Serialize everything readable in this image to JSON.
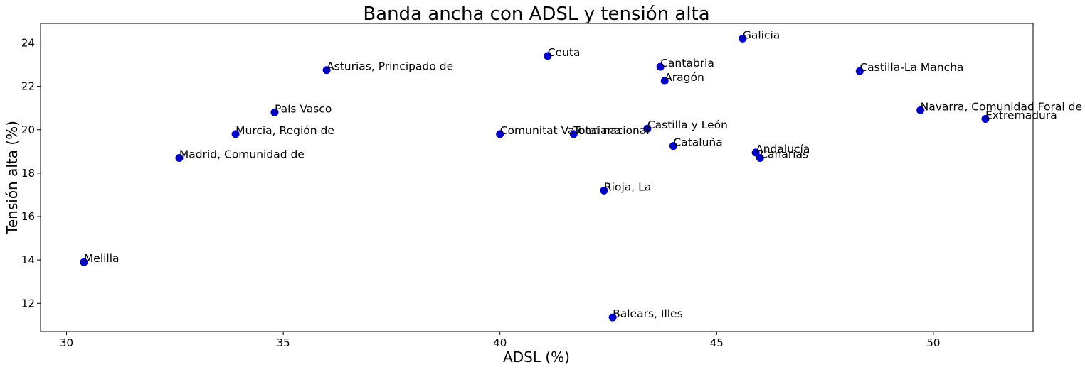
{
  "chart_data": {
    "type": "scatter",
    "title": "Banda ancha con ADSL y tensión alta",
    "xlabel": "ADSL (%)",
    "ylabel": "Tensión alta (%)",
    "xlim": [
      29.4,
      52.3
    ],
    "ylim": [
      10.7,
      24.9
    ],
    "xticks": [
      30,
      35,
      40,
      45,
      50
    ],
    "yticks": [
      12,
      14,
      16,
      18,
      20,
      22,
      24
    ],
    "grid": false,
    "legend": "none",
    "marker_color": "#0000cc",
    "points": [
      {
        "label": "Galicia",
        "x": 45.6,
        "y": 24.2
      },
      {
        "label": "Ceuta",
        "x": 41.1,
        "y": 23.4
      },
      {
        "label": "Cantabria",
        "x": 43.7,
        "y": 22.9
      },
      {
        "label": "Asturias, Principado de",
        "x": 36.0,
        "y": 22.75
      },
      {
        "label": "Castilla-La Mancha",
        "x": 48.3,
        "y": 22.7
      },
      {
        "label": "Aragón",
        "x": 43.8,
        "y": 22.25
      },
      {
        "label": "Navarra, Comunidad Foral de",
        "x": 49.7,
        "y": 20.9
      },
      {
        "label": "País Vasco",
        "x": 34.8,
        "y": 20.8
      },
      {
        "label": "Extremadura",
        "x": 51.2,
        "y": 20.5
      },
      {
        "label": "Castilla y León",
        "x": 43.4,
        "y": 20.05
      },
      {
        "label": "Murcia, Región de",
        "x": 33.9,
        "y": 19.8
      },
      {
        "label": "Comunitat Valenciana",
        "x": 40.0,
        "y": 19.8
      },
      {
        "label": "Total nacional",
        "x": 41.7,
        "y": 19.8
      },
      {
        "label": "Cataluña",
        "x": 44.0,
        "y": 19.25
      },
      {
        "label": "Andalucía",
        "x": 45.9,
        "y": 18.95
      },
      {
        "label": "Canarias",
        "x": 46.0,
        "y": 18.7
      },
      {
        "label": "Madrid, Comunidad de",
        "x": 32.6,
        "y": 18.7
      },
      {
        "label": "Rioja, La",
        "x": 42.4,
        "y": 17.2
      },
      {
        "label": "Melilla",
        "x": 30.4,
        "y": 13.9
      },
      {
        "label": "Balears, Illes",
        "x": 42.6,
        "y": 11.35
      }
    ]
  }
}
